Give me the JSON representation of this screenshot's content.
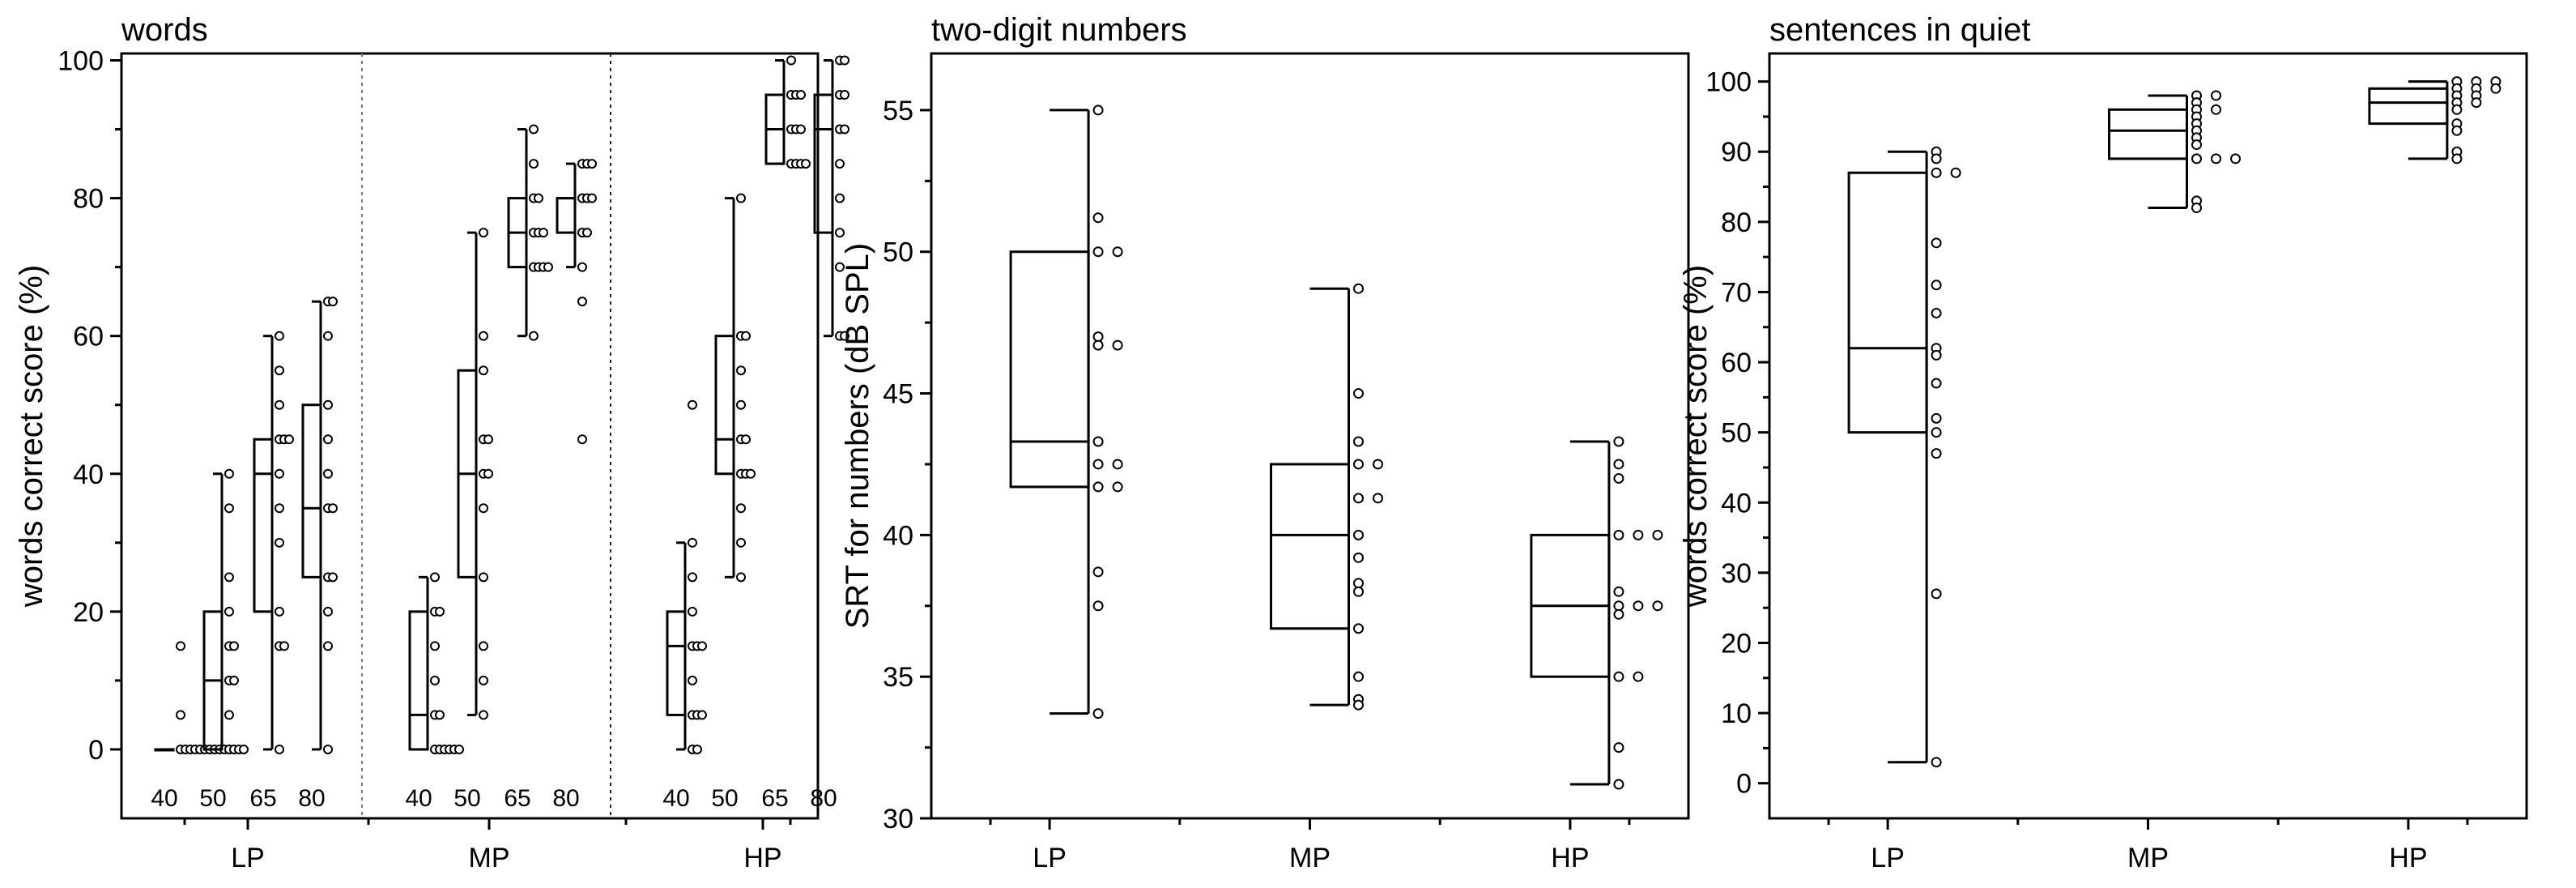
{
  "chart_data": [
    {
      "type": "box",
      "title": "words",
      "xlabel": "",
      "ylabel": "words correct score (%)",
      "ylim": [
        -10,
        101
      ],
      "yticks": [
        0,
        20,
        40,
        60,
        80,
        100
      ],
      "groups": [
        "LP",
        "MP",
        "HP"
      ],
      "levels": [
        "40",
        "50",
        "65",
        "80"
      ],
      "boxes": [
        {
          "group": "LP",
          "level": "40",
          "min": 0,
          "q1": 0,
          "median": 0,
          "q3": 0,
          "max": 0,
          "points": [
            15,
            5,
            0,
            0,
            0,
            0,
            0,
            0,
            0,
            0,
            0,
            0,
            0
          ]
        },
        {
          "group": "LP",
          "level": "50",
          "min": 0,
          "q1": 0,
          "median": 10,
          "q3": 20,
          "max": 40,
          "points": [
            40,
            35,
            25,
            20,
            15,
            15,
            10,
            10,
            5,
            0,
            0,
            0,
            0
          ]
        },
        {
          "group": "LP",
          "level": "65",
          "min": 0,
          "q1": 20,
          "median": 40,
          "q3": 45,
          "max": 60,
          "points": [
            60,
            55,
            50,
            45,
            45,
            45,
            40,
            35,
            30,
            20,
            15,
            15,
            0
          ]
        },
        {
          "group": "LP",
          "level": "80",
          "min": 0,
          "q1": 25,
          "median": 35,
          "q3": 50,
          "max": 65,
          "points": [
            65,
            65,
            60,
            50,
            45,
            40,
            35,
            35,
            25,
            25,
            20,
            15,
            0
          ]
        },
        {
          "group": "MP",
          "level": "40",
          "min": 0,
          "q1": 0,
          "median": 5,
          "q3": 20,
          "max": 25,
          "points": [
            25,
            20,
            20,
            15,
            10,
            5,
            5,
            0,
            0,
            0,
            0,
            0,
            0
          ]
        },
        {
          "group": "MP",
          "level": "50",
          "min": 5,
          "q1": 25,
          "median": 40,
          "q3": 55,
          "max": 75,
          "points": [
            75,
            60,
            55,
            45,
            45,
            40,
            40,
            35,
            25,
            15,
            10,
            5
          ]
        },
        {
          "group": "MP",
          "level": "65",
          "min": 60,
          "q1": 70,
          "median": 75,
          "q3": 80,
          "max": 90,
          "points": [
            90,
            85,
            80,
            80,
            75,
            75,
            75,
            70,
            70,
            70,
            70,
            60
          ]
        },
        {
          "group": "MP",
          "level": "80",
          "min": 70,
          "q1": 75,
          "median": 80,
          "q3": 80,
          "max": 85,
          "points": [
            85,
            85,
            85,
            80,
            80,
            80,
            75,
            75,
            70,
            65,
            45
          ]
        },
        {
          "group": "HP",
          "level": "40",
          "min": 0,
          "q1": 5,
          "median": 15,
          "q3": 20,
          "max": 30,
          "points": [
            50,
            30,
            25,
            20,
            15,
            15,
            15,
            10,
            5,
            5,
            5,
            0,
            0
          ]
        },
        {
          "group": "HP",
          "level": "50",
          "min": 25,
          "q1": 40,
          "median": 45,
          "q3": 60,
          "max": 80,
          "points": [
            80,
            60,
            60,
            55,
            50,
            45,
            45,
            40,
            40,
            40,
            35,
            30,
            25
          ]
        },
        {
          "group": "HP",
          "level": "65",
          "min": 85,
          "q1": 85,
          "median": 90,
          "q3": 95,
          "max": 100,
          "points": [
            100,
            95,
            95,
            95,
            90,
            90,
            90,
            85,
            85,
            85,
            85
          ]
        },
        {
          "group": "HP",
          "level": "80",
          "min": 60,
          "q1": 75,
          "median": 90,
          "q3": 95,
          "max": 100,
          "points": [
            100,
            100,
            95,
            95,
            90,
            90,
            85,
            80,
            75,
            70,
            60,
            60
          ]
        }
      ]
    },
    {
      "type": "box",
      "title": "two-digit numbers",
      "xlabel": "",
      "ylabel": "SRT for numbers (dB SPL)",
      "ylim": [
        30,
        57
      ],
      "yticks": [
        30,
        35,
        40,
        45,
        50,
        55
      ],
      "categories": [
        "LP",
        "MP",
        "HP"
      ],
      "boxes": [
        {
          "group": "LP",
          "min": 33.7,
          "q1": 41.7,
          "median": 43.3,
          "q3": 50,
          "max": 55,
          "points": [
            55,
            51.2,
            50,
            50,
            47,
            46.7,
            46.7,
            43.3,
            42.5,
            42.5,
            41.7,
            41.7,
            38.7,
            37.5,
            33.7
          ]
        },
        {
          "group": "MP",
          "min": 34,
          "q1": 36.7,
          "median": 40,
          "q3": 42.5,
          "max": 48.7,
          "points": [
            48.7,
            45,
            43.3,
            42.5,
            42.5,
            41.3,
            41.3,
            40,
            39.2,
            38.3,
            38,
            36.7,
            35,
            34.2,
            34
          ]
        },
        {
          "group": "HP",
          "min": 31.2,
          "q1": 35,
          "median": 37.5,
          "q3": 40,
          "max": 43.3,
          "points": [
            43.3,
            42.5,
            42,
            40,
            40,
            40,
            38,
            37.5,
            37.5,
            37.5,
            37.2,
            35,
            35,
            32.5,
            31.2
          ]
        }
      ]
    },
    {
      "type": "box",
      "title": "sentences in quiet",
      "xlabel": "",
      "ylabel": "words correct score (%)",
      "ylim": [
        -5,
        104
      ],
      "yticks": [
        0,
        10,
        20,
        30,
        40,
        50,
        60,
        70,
        80,
        90,
        100
      ],
      "categories": [
        "LP",
        "MP",
        "HP"
      ],
      "boxes": [
        {
          "group": "LP",
          "min": 3,
          "q1": 50,
          "median": 62,
          "q3": 87,
          "max": 90,
          "points": [
            90,
            89,
            87,
            87,
            77,
            71,
            67,
            62,
            61,
            57,
            52,
            50,
            47,
            27,
            3
          ]
        },
        {
          "group": "MP",
          "min": 82,
          "q1": 89,
          "median": 93,
          "q3": 96,
          "max": 98,
          "points": [
            98,
            98,
            97,
            96,
            96,
            95,
            94,
            93,
            92,
            91,
            89,
            89,
            89,
            83,
            82
          ]
        },
        {
          "group": "HP",
          "min": 89,
          "q1": 94,
          "median": 97,
          "q3": 99,
          "max": 100,
          "points": [
            100,
            100,
            100,
            99,
            99,
            99,
            98,
            98,
            97,
            97,
            96,
            94,
            93,
            90,
            89
          ]
        }
      ]
    }
  ]
}
